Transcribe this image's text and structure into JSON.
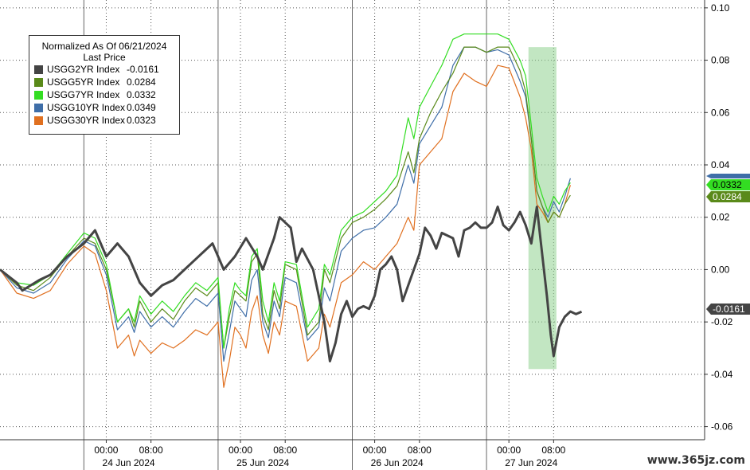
{
  "legend": {
    "title_line1": "Normalized As Of 06/21/2024",
    "title_line2": "Last Price"
  },
  "watermark": "www.365jz.com",
  "colors": {
    "USGG2YR": "#444444",
    "USGG5YR": "#5a8a1a",
    "USGG7YR": "#33dd22",
    "USGG10YR": "#3f6ea8",
    "USGG30YR": "#e07020",
    "highlight": "#8fd18f"
  },
  "chart_data": {
    "type": "line",
    "title": "",
    "xlabel": "",
    "ylabel": "",
    "ylim": [
      -0.065,
      0.103
    ],
    "y_ticks": [
      "0.10",
      "0.08",
      "0.06",
      "0.04",
      "0.02",
      "0.00",
      "-0.02",
      "-0.04",
      "-0.06"
    ],
    "y_tick_values": [
      0.1,
      0.08,
      0.06,
      0.04,
      0.02,
      0.0,
      -0.02,
      -0.04,
      -0.06
    ],
    "x_unit": "hours since 24 Jun 2024 00:00 (display axis)",
    "xlim": [
      -19,
      107
    ],
    "x_ticks": [
      {
        "x": 0,
        "label": "00:00"
      },
      {
        "x": 8,
        "label": "08:00"
      },
      {
        "x": 24,
        "label": "00:00"
      },
      {
        "x": 32,
        "label": "08:00"
      },
      {
        "x": 48,
        "label": "00:00"
      },
      {
        "x": 56,
        "label": "08:00"
      },
      {
        "x": 72,
        "label": "00:00"
      },
      {
        "x": 80,
        "label": "08:00"
      }
    ],
    "day_labels": [
      {
        "x": 4,
        "label": "24 Jun 2024"
      },
      {
        "x": 28,
        "label": "25 Jun 2024"
      },
      {
        "x": 52,
        "label": "26 Jun 2024"
      },
      {
        "x": 76,
        "label": "27 Jun 2024"
      }
    ],
    "day_separators": [
      -4,
      20,
      44,
      68
    ],
    "highlight_region": {
      "x": [
        75.5,
        80.5
      ],
      "y": [
        -0.038,
        0.085
      ]
    },
    "grid": true,
    "legend_position": "top-left",
    "series": [
      {
        "name": "USGG2YR Index",
        "last": "-0.0161",
        "color_key": "USGG2YR",
        "width": 3,
        "x": [
          -19,
          -16,
          -15,
          -12,
          -10,
          -7,
          -4,
          -2,
          0,
          2,
          4,
          6,
          8,
          10,
          12,
          14,
          16,
          19,
          21,
          23,
          25,
          27,
          28,
          30,
          31,
          32,
          33,
          34,
          35,
          37,
          39,
          40,
          41,
          42,
          43,
          44,
          45,
          46,
          47,
          48,
          49,
          50,
          51,
          52,
          53,
          55,
          56,
          57,
          58,
          59,
          60,
          62,
          63,
          64,
          65,
          66,
          67,
          68,
          69,
          70,
          71,
          72,
          73,
          74,
          75,
          76,
          77,
          78,
          78.8,
          79.5,
          80,
          81,
          82,
          83,
          84,
          85
        ],
        "y": [
          0.0,
          -0.005,
          -0.008,
          -0.004,
          -0.002,
          0.005,
          0.01,
          0.015,
          0.005,
          0.01,
          0.005,
          -0.005,
          -0.01,
          -0.006,
          -0.004,
          0.0,
          0.004,
          0.01,
          0.0,
          0.005,
          0.012,
          0.005,
          0.0,
          0.012,
          0.02,
          0.018,
          0.016,
          0.003,
          0.008,
          0.0,
          -0.02,
          -0.035,
          -0.028,
          -0.017,
          -0.012,
          -0.018,
          -0.015,
          -0.014,
          -0.015,
          -0.01,
          0.0,
          0.002,
          0.005,
          0.0,
          -0.012,
          0.0,
          0.006,
          0.016,
          0.013,
          0.008,
          0.014,
          0.012,
          0.005,
          0.015,
          0.016,
          0.018,
          0.016,
          0.016,
          0.018,
          0.024,
          0.017,
          0.015,
          0.018,
          0.022,
          0.017,
          0.01,
          0.024,
          0.005,
          -0.01,
          -0.025,
          -0.033,
          -0.022,
          -0.018,
          -0.016,
          -0.017,
          -0.0161
        ]
      },
      {
        "name": "USGG5YR Index",
        "last": "0.0284",
        "color_key": "USGG5YR",
        "width": 1.2,
        "x": [
          -19,
          -16,
          -13,
          -10,
          -7,
          -4,
          -2,
          0,
          2,
          4,
          5,
          6,
          8,
          10,
          12,
          14,
          16,
          18,
          20,
          21,
          22,
          23,
          24,
          25,
          26,
          27,
          28,
          29,
          30,
          31,
          32,
          34,
          36,
          38,
          39,
          40,
          42,
          44,
          46,
          48,
          50,
          52,
          54,
          55,
          56,
          58,
          60,
          62,
          64,
          66,
          68,
          70,
          72,
          74,
          75,
          76,
          77,
          78,
          79,
          80,
          81,
          82,
          83
        ],
        "y": [
          0.0,
          -0.006,
          -0.008,
          -0.003,
          0.005,
          0.012,
          0.01,
          0.0,
          -0.02,
          -0.015,
          -0.022,
          -0.012,
          -0.02,
          -0.015,
          -0.019,
          -0.012,
          -0.007,
          -0.01,
          -0.005,
          -0.03,
          -0.018,
          -0.008,
          -0.01,
          -0.012,
          0.003,
          0.006,
          -0.017,
          -0.023,
          -0.008,
          -0.015,
          0.002,
          0.0,
          -0.025,
          -0.02,
          0.0,
          -0.005,
          0.012,
          0.018,
          0.02,
          0.023,
          0.027,
          0.032,
          0.045,
          0.037,
          0.05,
          0.06,
          0.068,
          0.075,
          0.085,
          0.085,
          0.083,
          0.085,
          0.085,
          0.076,
          0.068,
          0.05,
          0.03,
          0.024,
          0.018,
          0.022,
          0.02,
          0.025,
          0.0284
        ]
      },
      {
        "name": "USGG7YR Index",
        "last": "0.0332",
        "color_key": "USGG7YR",
        "width": 1.2,
        "x": [
          -19,
          -16,
          -13,
          -10,
          -7,
          -4,
          -2,
          0,
          2,
          4,
          5,
          6,
          8,
          10,
          12,
          14,
          16,
          18,
          20,
          21,
          22,
          23,
          24,
          25,
          26,
          27,
          28,
          29,
          30,
          31,
          32,
          34,
          36,
          38,
          39,
          40,
          42,
          44,
          46,
          48,
          50,
          52,
          54,
          55,
          56,
          58,
          60,
          62,
          64,
          66,
          68,
          70,
          72,
          74,
          75,
          76,
          77,
          78,
          79,
          80,
          81,
          82,
          83
        ],
        "y": [
          0.0,
          -0.005,
          -0.006,
          -0.002,
          0.006,
          0.014,
          0.012,
          0.002,
          -0.02,
          -0.015,
          -0.02,
          -0.01,
          -0.017,
          -0.012,
          -0.016,
          -0.01,
          -0.005,
          -0.008,
          -0.003,
          -0.03,
          -0.015,
          -0.005,
          -0.008,
          -0.01,
          0.005,
          0.008,
          -0.012,
          -0.02,
          -0.005,
          -0.012,
          0.003,
          0.002,
          -0.022,
          -0.015,
          0.002,
          -0.002,
          0.015,
          0.02,
          0.022,
          0.026,
          0.03,
          0.036,
          0.058,
          0.05,
          0.062,
          0.07,
          0.078,
          0.088,
          0.09,
          0.09,
          0.09,
          0.09,
          0.088,
          0.08,
          0.074,
          0.055,
          0.035,
          0.028,
          0.022,
          0.028,
          0.025,
          0.03,
          0.0332
        ]
      },
      {
        "name": "USGG10YR Index",
        "last": "0.0349",
        "color_key": "USGG10YR",
        "width": 1.2,
        "x": [
          -19,
          -16,
          -13,
          -10,
          -7,
          -4,
          -2,
          0,
          2,
          4,
          5,
          6,
          8,
          10,
          12,
          14,
          16,
          18,
          20,
          21,
          22,
          23,
          24,
          25,
          26,
          27,
          28,
          29,
          30,
          31,
          32,
          34,
          36,
          38,
          39,
          40,
          42,
          44,
          46,
          48,
          50,
          52,
          54,
          55,
          56,
          58,
          60,
          62,
          64,
          66,
          68,
          70,
          72,
          74,
          75,
          76,
          77,
          78,
          79,
          80,
          81,
          82,
          83
        ],
        "y": [
          0.0,
          -0.007,
          -0.009,
          -0.005,
          0.004,
          0.011,
          0.009,
          -0.002,
          -0.023,
          -0.018,
          -0.024,
          -0.016,
          -0.022,
          -0.018,
          -0.022,
          -0.016,
          -0.011,
          -0.014,
          -0.009,
          -0.035,
          -0.024,
          -0.012,
          -0.015,
          -0.018,
          -0.004,
          0.0,
          -0.02,
          -0.026,
          -0.012,
          -0.018,
          -0.003,
          -0.005,
          -0.027,
          -0.022,
          -0.007,
          -0.012,
          0.007,
          0.012,
          0.015,
          0.016,
          0.02,
          0.025,
          0.04,
          0.033,
          0.048,
          0.055,
          0.062,
          0.078,
          0.085,
          0.085,
          0.083,
          0.084,
          0.082,
          0.072,
          0.066,
          0.05,
          0.03,
          0.024,
          0.02,
          0.026,
          0.022,
          0.028,
          0.0349
        ]
      },
      {
        "name": "USGG30YR Index",
        "last": "0.0323",
        "color_key": "USGG30YR",
        "width": 1.2,
        "x": [
          -19,
          -16,
          -13,
          -10,
          -7,
          -4,
          -2,
          0,
          2,
          4,
          5,
          6,
          8,
          10,
          12,
          14,
          16,
          18,
          20,
          21,
          22,
          23,
          24,
          25,
          26,
          27,
          28,
          29,
          30,
          31,
          32,
          34,
          36,
          38,
          39,
          40,
          42,
          44,
          46,
          48,
          50,
          52,
          54,
          55,
          56,
          58,
          60,
          62,
          64,
          66,
          68,
          70,
          72,
          74,
          75,
          76,
          77,
          78,
          79,
          80,
          81,
          82,
          83
        ],
        "y": [
          0.0,
          -0.009,
          -0.011,
          -0.008,
          0.002,
          0.009,
          0.006,
          -0.008,
          -0.03,
          -0.025,
          -0.033,
          -0.027,
          -0.032,
          -0.028,
          -0.03,
          -0.027,
          -0.023,
          -0.025,
          -0.02,
          -0.045,
          -0.035,
          -0.022,
          -0.025,
          -0.03,
          -0.016,
          -0.01,
          -0.025,
          -0.032,
          -0.02,
          -0.025,
          -0.012,
          -0.014,
          -0.035,
          -0.03,
          -0.017,
          -0.022,
          -0.005,
          -0.002,
          0.003,
          0.0,
          0.005,
          0.01,
          0.02,
          0.015,
          0.04,
          0.045,
          0.05,
          0.068,
          0.075,
          0.072,
          0.07,
          0.078,
          0.077,
          0.066,
          0.058,
          0.046,
          0.025,
          0.022,
          0.018,
          0.022,
          0.02,
          0.025,
          0.0323
        ]
      }
    ]
  }
}
